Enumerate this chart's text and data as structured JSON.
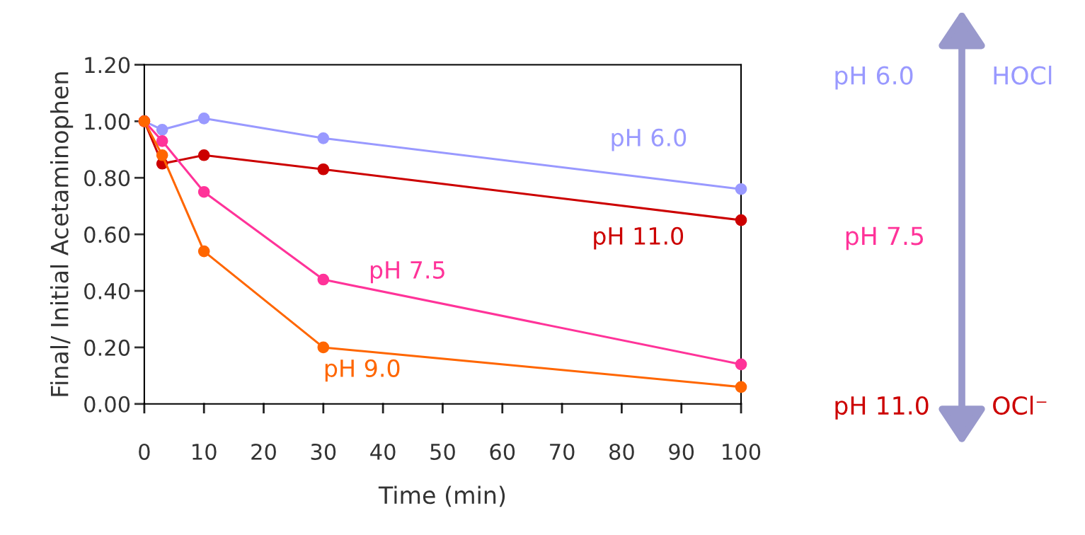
{
  "chart_data": {
    "type": "line",
    "xlabel": "Time (min)",
    "ylabel": "Final/ Initial Acetaminophen",
    "x": [
      0,
      3,
      10,
      30,
      100
    ],
    "series": [
      {
        "name": "pH 6.0",
        "color": "#9999ff",
        "values": [
          1.0,
          0.97,
          1.01,
          0.94,
          0.76
        ]
      },
      {
        "name": "pH 11.0",
        "color": "#cc0000",
        "values": [
          1.0,
          0.85,
          0.88,
          0.83,
          0.65
        ]
      },
      {
        "name": "pH 7.5",
        "color": "#ff3399",
        "values": [
          1.0,
          0.93,
          0.75,
          0.44,
          0.14
        ]
      },
      {
        "name": "pH 9.0",
        "color": "#ff6600",
        "values": [
          1.0,
          0.88,
          0.54,
          0.2,
          0.06
        ]
      }
    ],
    "xlim": [
      0,
      100
    ],
    "xticks": [
      0,
      10,
      20,
      30,
      40,
      50,
      60,
      70,
      80,
      90,
      100
    ],
    "ylim": [
      0,
      1.2
    ],
    "yticks": [
      {
        "value": 0,
        "label": "0.00"
      },
      {
        "value": 0.2,
        "label": "0.20"
      },
      {
        "value": 0.4,
        "label": "0.40"
      },
      {
        "value": 0.6,
        "label": "0.60"
      },
      {
        "value": 0.8,
        "label": "0.80"
      },
      {
        "value": 1.0,
        "label": "1.00"
      },
      {
        "value": 1.2,
        "label": "1.20"
      }
    ],
    "marker": "circle",
    "line_style": "solid",
    "grid": false,
    "legend": false,
    "annotations": [
      "pH 6.0",
      "HOCl",
      "pH 7.5",
      "pH 11.0",
      "OCl⁻"
    ]
  }
}
